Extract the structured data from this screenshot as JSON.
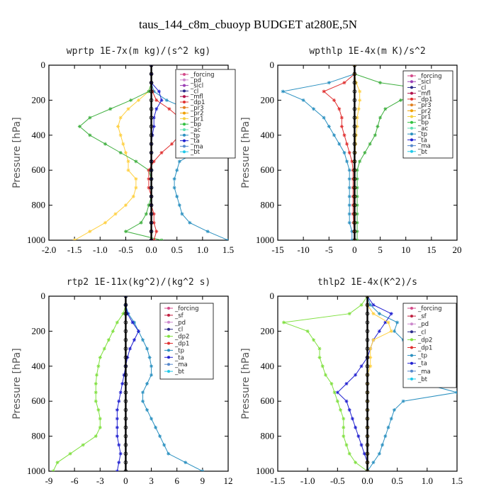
{
  "figure_title": "taus_144_c8m_cbuoyp  BUDGET at280E,5N",
  "colors": {
    "forcing": "#d44a8a",
    "pd": "#cc88cc",
    "sicl": "#9b3fb5",
    "cl": "#2a2a8a",
    "mfl": "#b0104a",
    "dp1": "#e03030",
    "pr3": "#e08020",
    "pr2": "#f0a000",
    "pr1": "#f5d040",
    "bp": "#30c040",
    "ac": "#60e0b0",
    "tp": "#2a90c0",
    "ta": "#2020d0",
    "ma": "#5588cc",
    "bt": "#20c8e8",
    "sf": "#c02040",
    "dp2": "#80e040",
    "yellow": "#ffd040",
    "green": "#40b040",
    "black": "#000000"
  },
  "chart_data": [
    {
      "type": "line",
      "title": "wprtp  1E-7x(m kg)/(s^2 kg)",
      "ylabel": "Pressure [hPa]",
      "xlim": [
        -2.0,
        1.5
      ],
      "xticks": [
        "-2.0",
        "-1.5",
        "-1.0",
        "-0.5",
        "0.0",
        "0.5",
        "1.0",
        "1.5"
      ],
      "ylim": [
        0,
        1000
      ],
      "yticks": [
        "0",
        "200",
        "400",
        "600",
        "800",
        "1000"
      ],
      "y_inverted": true,
      "legend": [
        "_forcing",
        "_pd",
        "_sicl",
        "_cl",
        "_mfl",
        "_dp1",
        "_pr3",
        "_pr2",
        "_pr1",
        "_bp",
        "_ac",
        "_tp",
        "_ta",
        "_ma",
        "_bt"
      ],
      "y": [
        0,
        50,
        100,
        150,
        200,
        250,
        300,
        350,
        400,
        450,
        500,
        550,
        600,
        650,
        700,
        750,
        800,
        850,
        900,
        950,
        1000
      ],
      "series": [
        {
          "key": "yellow",
          "values": [
            0,
            0,
            0,
            -0.05,
            -0.25,
            -0.45,
            -0.6,
            -0.65,
            -0.6,
            -0.55,
            -0.5,
            -0.45,
            -0.45,
            -0.3,
            -0.3,
            -0.35,
            -0.5,
            -0.7,
            -0.9,
            -1.2,
            -1.5
          ]
        },
        {
          "key": "green",
          "values": [
            0,
            0,
            0,
            -0.05,
            -0.4,
            -0.8,
            -1.2,
            -1.4,
            -1.2,
            -0.9,
            -0.6,
            -0.3,
            -0.05,
            0,
            0,
            0,
            -0.05,
            -0.1,
            -0.2,
            -0.5,
            0.2
          ]
        },
        {
          "key": "tp",
          "values": [
            0,
            0,
            0,
            0.05,
            0.3,
            0.7,
            0.95,
            1.05,
            1.1,
            1.05,
            0.85,
            0.55,
            0.5,
            0.45,
            0.45,
            0.5,
            0.55,
            0.6,
            0.75,
            1.1,
            1.5
          ]
        },
        {
          "key": "dp1",
          "values": [
            0,
            0,
            0,
            0.02,
            0.1,
            0.35,
            0.55,
            0.65,
            0.55,
            0.4,
            0.2,
            0.05,
            -0.05,
            -0.05,
            -0.05,
            0,
            0,
            0.05,
            0.05,
            0.1,
            0.05
          ]
        },
        {
          "key": "ta",
          "values": [
            0,
            0,
            0,
            0.15,
            0.2,
            0.1,
            0.05,
            0.05,
            0.02,
            0,
            0,
            0,
            0,
            0,
            0,
            0,
            0,
            0,
            0,
            0,
            0
          ]
        },
        {
          "key": "black",
          "values": [
            0,
            0,
            0,
            0,
            0,
            0,
            0,
            0,
            0,
            0,
            0,
            0,
            0,
            0,
            0,
            0,
            0,
            0,
            0,
            0,
            0
          ]
        }
      ]
    },
    {
      "type": "line",
      "title": "wpthlp  1E-4x(m K)/s^2",
      "ylabel": "Pressure [hPa]",
      "xlim": [
        -15,
        20
      ],
      "xticks": [
        "-15",
        "-10",
        "-5",
        "0",
        "5",
        "10",
        "15",
        "20"
      ],
      "ylim": [
        0,
        1000
      ],
      "yticks": [
        "0",
        "200",
        "400",
        "600",
        "800",
        "1000"
      ],
      "y_inverted": true,
      "legend": [
        "_forcing",
        "_sicl",
        "_cl",
        "_mfl",
        "_dp1",
        "_pr3",
        "_pr2",
        "_pr1",
        "_bp",
        "_ac",
        "_tp",
        "_ta",
        "_ma",
        "_bt"
      ],
      "y": [
        0,
        50,
        100,
        150,
        200,
        250,
        300,
        350,
        400,
        450,
        500,
        550,
        600,
        650,
        700,
        750,
        800,
        850,
        900,
        950,
        1000
      ],
      "series": [
        {
          "key": "green",
          "values": [
            0,
            0,
            5,
            17,
            9,
            6,
            5,
            4.5,
            4,
            3,
            2,
            1,
            0.5,
            0.5,
            0.5,
            0.5,
            0.5,
            0.5,
            0.5,
            0.5,
            0.5
          ]
        },
        {
          "key": "tp",
          "values": [
            0,
            0,
            -5,
            -14,
            -10,
            -8,
            -6,
            -5,
            -4,
            -3,
            -2,
            -1.5,
            -1,
            -1,
            -1,
            -1,
            -1,
            -1,
            -1,
            -0.5,
            -0.5
          ]
        },
        {
          "key": "dp1",
          "values": [
            0,
            0,
            -2,
            -6,
            -4,
            -3,
            -2.5,
            -2.5,
            -2,
            -1.5,
            -1,
            -0.5,
            -0.3,
            -0.3,
            -0.3,
            -0.3,
            -0.3,
            -0.3,
            -0.2,
            -0.1,
            0
          ]
        },
        {
          "key": "yellow",
          "values": [
            0,
            0,
            0.3,
            1,
            1,
            0.8,
            0.5,
            0.5,
            0.3,
            0.2,
            0.1,
            0,
            0,
            0,
            0,
            0,
            0,
            0,
            0,
            0,
            0
          ]
        },
        {
          "key": "black",
          "values": [
            0,
            0,
            0,
            0,
            0,
            0,
            0,
            0,
            0,
            0,
            0,
            0,
            0,
            0,
            0,
            0,
            0,
            0,
            0,
            0,
            0
          ]
        }
      ]
    },
    {
      "type": "line",
      "title": "rtp2  1E-11x(kg^2)/(kg^2 s)",
      "ylabel": "Pressure [hPa]",
      "xlim": [
        -9,
        12
      ],
      "xticks": [
        "-9",
        "-6",
        "-3",
        "0",
        "3",
        "6",
        "9",
        "12"
      ],
      "ylim": [
        0,
        1000
      ],
      "yticks": [
        "0",
        "200",
        "400",
        "600",
        "800",
        "1000"
      ],
      "y_inverted": true,
      "legend": [
        "_forcing",
        "_sf",
        "_pd",
        "_cl",
        "_dp2",
        "_dp1",
        "_tp",
        "_ta",
        "_ma",
        "_bt"
      ],
      "y": [
        0,
        50,
        100,
        150,
        200,
        250,
        300,
        350,
        400,
        450,
        500,
        550,
        600,
        650,
        700,
        750,
        800,
        850,
        900,
        950,
        1000
      ],
      "series": [
        {
          "key": "dp2",
          "values": [
            0,
            0,
            -0.3,
            -1,
            -1.5,
            -2,
            -2.5,
            -3,
            -3.2,
            -3.4,
            -3.5,
            -3.5,
            -3.5,
            -3.2,
            -3,
            -3,
            -3.5,
            -5,
            -6.5,
            -8,
            -8.5
          ]
        },
        {
          "key": "tp",
          "values": [
            0,
            0,
            0.3,
            1,
            1.5,
            2,
            2.5,
            2.8,
            3,
            3,
            2.5,
            2,
            2,
            2.5,
            3,
            3.5,
            4,
            4.5,
            5,
            7,
            9
          ]
        },
        {
          "key": "ta",
          "values": [
            0,
            0,
            0.2,
            0.8,
            1.5,
            1,
            0.5,
            0.2,
            0,
            -0.2,
            -0.4,
            -0.6,
            -0.8,
            -1,
            -1,
            -1,
            -1,
            -0.8,
            -0.6,
            -0.8,
            -1
          ]
        },
        {
          "key": "black",
          "values": [
            0,
            0,
            0,
            0,
            0,
            0,
            0,
            0,
            0,
            0,
            0,
            0,
            0,
            0,
            0,
            0,
            0,
            0,
            0,
            0,
            0
          ]
        }
      ]
    },
    {
      "type": "line",
      "title": "thlp2  1E-4x(K^2)/s",
      "ylabel": "Pressure [hPa]",
      "xlim": [
        -1.5,
        1.5
      ],
      "xticks": [
        "-1.5",
        "-1.0",
        "-0.5",
        "0.0",
        "0.5",
        "1.0",
        "1.5"
      ],
      "ylim": [
        0,
        1000
      ],
      "yticks": [
        "0",
        "200",
        "400",
        "600",
        "800",
        "1000"
      ],
      "y_inverted": true,
      "legend": [
        "_forcing",
        "_sf",
        "_pd",
        "_cl",
        "_dp2",
        "_dp1",
        "_tp",
        "_ta",
        "_ma",
        "_bt"
      ],
      "y": [
        0,
        50,
        100,
        150,
        200,
        250,
        300,
        350,
        400,
        450,
        500,
        550,
        600,
        650,
        700,
        750,
        800,
        850,
        900,
        950,
        1000
      ],
      "series": [
        {
          "key": "dp2",
          "values": [
            0,
            -0.1,
            -0.3,
            -1.4,
            -1.0,
            -0.9,
            -0.8,
            -0.8,
            -0.75,
            -0.7,
            -0.6,
            -0.55,
            -0.5,
            -0.45,
            -0.4,
            -0.4,
            -0.4,
            -0.35,
            -0.3,
            -0.2,
            0
          ]
        },
        {
          "key": "tp",
          "values": [
            0,
            0.05,
            0.2,
            0.5,
            0.45,
            0.6,
            0.75,
            0.85,
            0.95,
            1.0,
            0.95,
            1.5,
            0.6,
            0.45,
            0.4,
            0.35,
            0.3,
            0.25,
            0.2,
            0.1,
            0
          ]
        },
        {
          "key": "ta",
          "values": [
            0,
            0.1,
            0.4,
            0.3,
            0.2,
            0.1,
            0.05,
            0,
            -0.1,
            -0.2,
            -0.35,
            -0.5,
            -0.35,
            -0.3,
            -0.25,
            -0.2,
            -0.15,
            -0.1,
            -0.05,
            0,
            0
          ]
        },
        {
          "key": "yellow",
          "values": [
            0,
            0,
            0.1,
            0.35,
            0.4,
            0.1,
            0.05,
            0.05,
            0.05,
            0,
            0,
            0,
            0,
            0,
            0,
            0,
            0,
            0,
            0,
            0,
            0
          ]
        },
        {
          "key": "black",
          "values": [
            0,
            0,
            0,
            0,
            0,
            0,
            0,
            0,
            0,
            0,
            0,
            0,
            0,
            0,
            0,
            0,
            0,
            0,
            0,
            0,
            0
          ]
        }
      ]
    }
  ]
}
